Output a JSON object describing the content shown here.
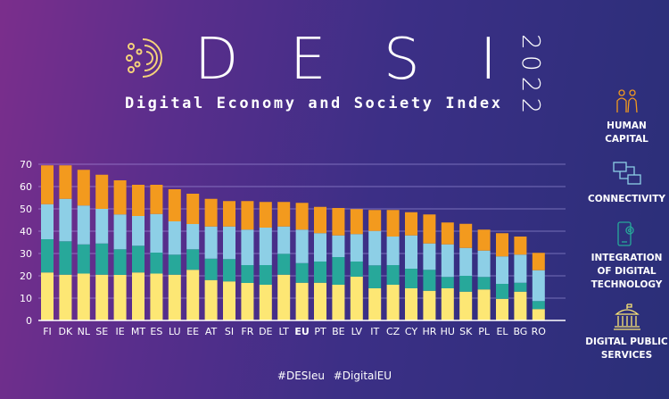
{
  "header": {
    "letters": [
      "D",
      "E",
      "S",
      "I"
    ],
    "subtitle": "Digital Economy and Society Index",
    "year": "2022"
  },
  "legend": [
    {
      "label": "HUMAN CAPITAL",
      "icon": "people-icon",
      "color": "#f39a1e"
    },
    {
      "label": "CONNECTIVITY",
      "icon": "network-computers-icon",
      "color": "#8dcfe6"
    },
    {
      "label": "INTEGRATION OF DIGITAL TECHNOLOGY",
      "icon": "phone-gear-icon",
      "color": "#27a89a"
    },
    {
      "label": "DIGITAL PUBLIC SERVICES",
      "icon": "government-building-icon",
      "color": "#fde774"
    }
  ],
  "hashtags": "#DESIeu  #DigitalEU",
  "chart_data": {
    "type": "bar",
    "stacked": true,
    "title": "Digital Economy and Society Index 2022",
    "xlabel": "",
    "ylabel": "",
    "ylim": [
      0,
      70
    ],
    "yticks": [
      0,
      10,
      20,
      30,
      40,
      50,
      60,
      70
    ],
    "grid": true,
    "legend_position": "right",
    "categories": [
      "FI",
      "DK",
      "NL",
      "SE",
      "IE",
      "MT",
      "ES",
      "LU",
      "EE",
      "AT",
      "SI",
      "FR",
      "DE",
      "LT",
      "EU",
      "PT",
      "BE",
      "LV",
      "IT",
      "CZ",
      "CY",
      "HR",
      "HU",
      "SK",
      "PL",
      "EL",
      "BG",
      "RO"
    ],
    "highlight": "EU",
    "series": [
      {
        "name": "Digital public services",
        "color": "#fde774",
        "values": [
          21.5,
          20.5,
          21.0,
          20.5,
          20.4,
          21.5,
          21.0,
          20.5,
          22.7,
          18.1,
          17.5,
          16.8,
          16.0,
          20.5,
          16.9,
          16.9,
          16.0,
          19.6,
          14.4,
          16.0,
          14.4,
          13.3,
          14.4,
          12.9,
          13.9,
          9.7,
          12.9,
          5.1
        ]
      },
      {
        "name": "Integration of digital technology",
        "color": "#27a89a",
        "values": [
          14.9,
          15.0,
          13.1,
          14.0,
          11.5,
          12.0,
          9.4,
          9.0,
          9.2,
          9.6,
          10.0,
          8.0,
          8.8,
          9.4,
          8.8,
          9.5,
          12.4,
          6.8,
          10.3,
          8.8,
          8.8,
          9.4,
          5.1,
          7.1,
          5.6,
          6.7,
          4.0,
          3.6
        ]
      },
      {
        "name": "Connectivity",
        "color": "#8dcfe6",
        "values": [
          15.7,
          19.0,
          17.4,
          15.5,
          15.6,
          13.3,
          17.3,
          14.9,
          11.3,
          14.4,
          14.6,
          15.9,
          16.8,
          12.2,
          15.0,
          12.7,
          9.7,
          12.3,
          15.4,
          12.8,
          14.9,
          11.8,
          14.6,
          12.5,
          11.8,
          12.3,
          12.6,
          13.8
        ]
      },
      {
        "name": "Human capital",
        "color": "#f39a1e",
        "values": [
          17.4,
          15.0,
          16.0,
          15.3,
          15.3,
          14.0,
          13.1,
          14.4,
          13.6,
          12.4,
          11.4,
          12.8,
          11.5,
          11.0,
          12.0,
          11.8,
          12.3,
          11.2,
          9.4,
          11.9,
          10.4,
          13.0,
          9.8,
          10.8,
          9.4,
          10.4,
          8.1,
          7.8
        ]
      }
    ]
  }
}
